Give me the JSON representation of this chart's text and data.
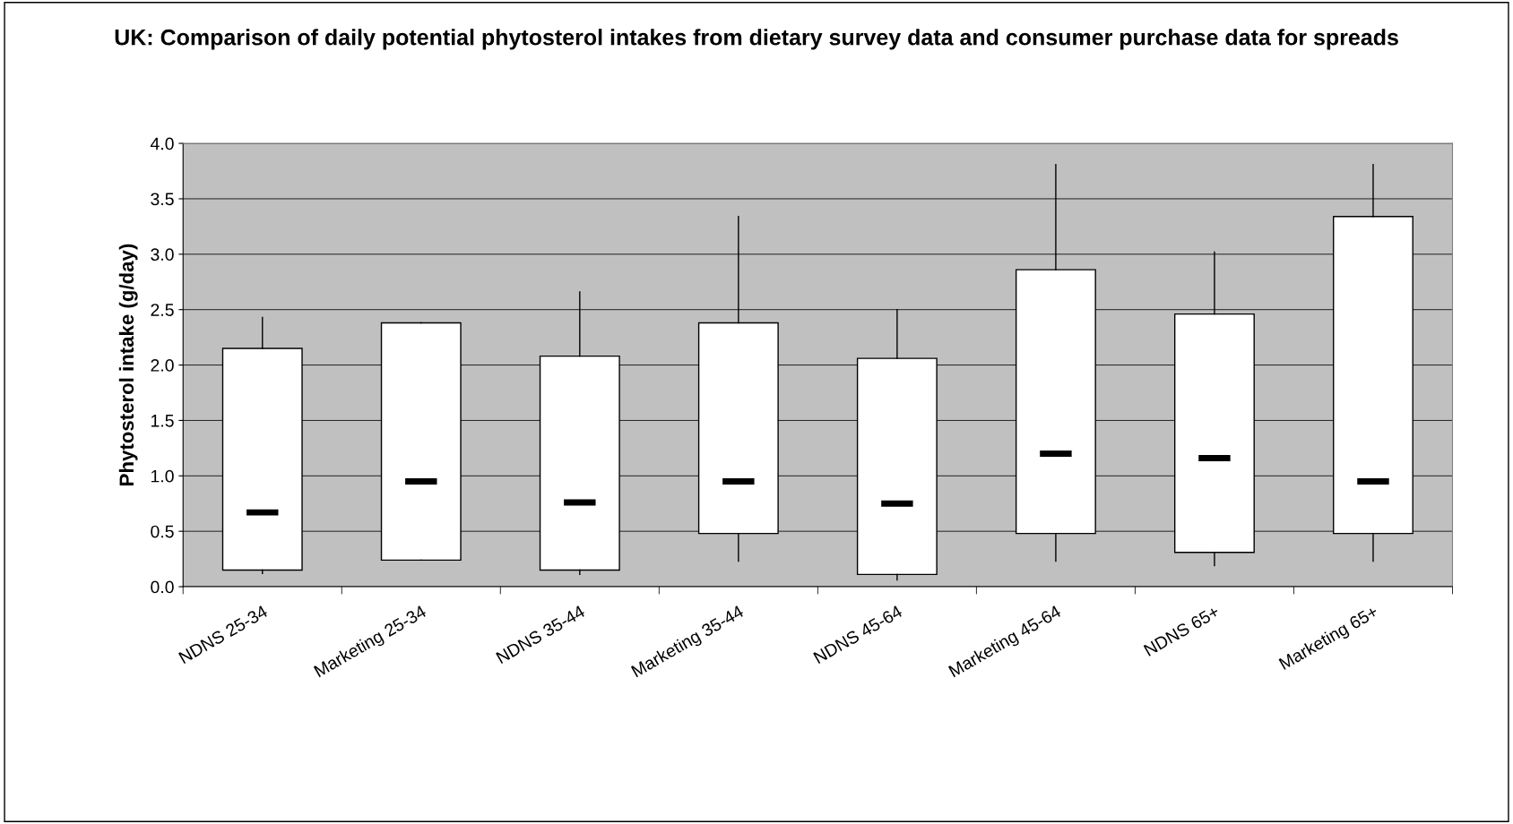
{
  "chart_data": {
    "type": "box",
    "title": "UK: Comparison of daily potential phytosterol intakes from dietary survey data and consumer purchase data for spreads",
    "ylabel": "Phytosterol intake (g/day)",
    "categories": [
      "NDNS 25-34",
      "Marketing 25-34",
      "NDNS 35-44",
      "Marketing 35-44",
      "NDNS 45-64",
      "Marketing 45-64",
      "NDNS 65+",
      "Marketing 65+"
    ],
    "boxes": [
      {
        "low": 0.12,
        "q1": 0.15,
        "median": 0.67,
        "q3": 2.15,
        "high": 2.43
      },
      {
        "low": 0.24,
        "q1": 0.24,
        "median": 0.95,
        "q3": 2.38,
        "high": 2.38
      },
      {
        "low": 0.11,
        "q1": 0.15,
        "median": 0.76,
        "q3": 2.08,
        "high": 2.66
      },
      {
        "low": 0.23,
        "q1": 0.48,
        "median": 0.95,
        "q3": 2.38,
        "high": 3.34
      },
      {
        "low": 0.06,
        "q1": 0.11,
        "median": 0.75,
        "q3": 2.06,
        "high": 2.5
      },
      {
        "low": 0.23,
        "q1": 0.48,
        "median": 1.2,
        "q3": 2.86,
        "high": 3.81
      },
      {
        "low": 0.19,
        "q1": 0.31,
        "median": 1.16,
        "q3": 2.46,
        "high": 3.02
      },
      {
        "low": 0.23,
        "q1": 0.48,
        "median": 0.95,
        "q3": 3.34,
        "high": 3.81
      }
    ],
    "ylim": [
      0,
      4
    ],
    "yticks": [
      {
        "value": 0,
        "label": "0.0"
      },
      {
        "value": 0.5,
        "label": "0.5"
      },
      {
        "value": 1,
        "label": "1.0"
      },
      {
        "value": 1.5,
        "label": "1.5"
      },
      {
        "value": 2,
        "label": "2.0"
      },
      {
        "value": 2.5,
        "label": "2.5"
      },
      {
        "value": 3,
        "label": "3.0"
      },
      {
        "value": 3.5,
        "label": "3.5"
      },
      {
        "value": 4,
        "label": "4.0"
      }
    ],
    "grid": "y"
  }
}
